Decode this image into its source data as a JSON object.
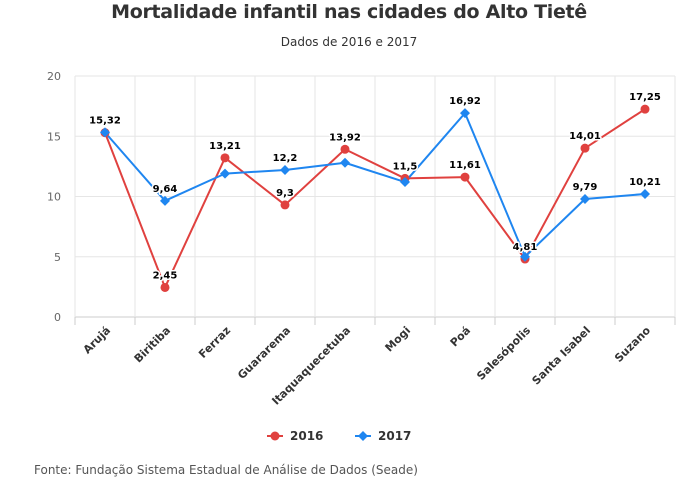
{
  "chart_data": {
    "type": "line",
    "title": "Mortalidade infantil nas cidades do Alto Tietê",
    "subtitle": "Dados de 2016 e 2017",
    "xlabel": "",
    "ylabel": "",
    "categories": [
      "Arujá",
      "Biritiba",
      "Ferraz",
      "Guararema",
      "Itaquaquecetuba",
      "Mogi",
      "Poá",
      "Salesópolis",
      "Santa Isabel",
      "Suzano"
    ],
    "ylim": [
      0,
      20
    ],
    "yticks": [
      0,
      5,
      10,
      15,
      20
    ],
    "grid": true,
    "legend_position": "bottom",
    "series": [
      {
        "name": "2016",
        "color": "#e0413f",
        "marker": "circle",
        "values": [
          15.3,
          2.45,
          13.21,
          9.3,
          13.92,
          11.5,
          11.61,
          4.81,
          14.01,
          17.25
        ],
        "labels": [
          "",
          "2,45",
          "13,21",
          "9,3",
          "13,92",
          "11,5",
          "11,61",
          "4,81",
          "14,01",
          "17,25"
        ]
      },
      {
        "name": "2017",
        "color": "#1f86f0",
        "marker": "diamond",
        "values": [
          15.32,
          9.64,
          11.9,
          12.2,
          12.8,
          11.2,
          16.92,
          5.0,
          9.79,
          10.21
        ],
        "labels": [
          "15,32",
          "9,64",
          "",
          "12,2",
          "",
          "",
          "16,92",
          "",
          "9,79",
          "10,21"
        ]
      }
    ]
  },
  "footer": {
    "source": "Fonte: Fundação Sistema Estadual de Análise de Dados (Seade)"
  }
}
